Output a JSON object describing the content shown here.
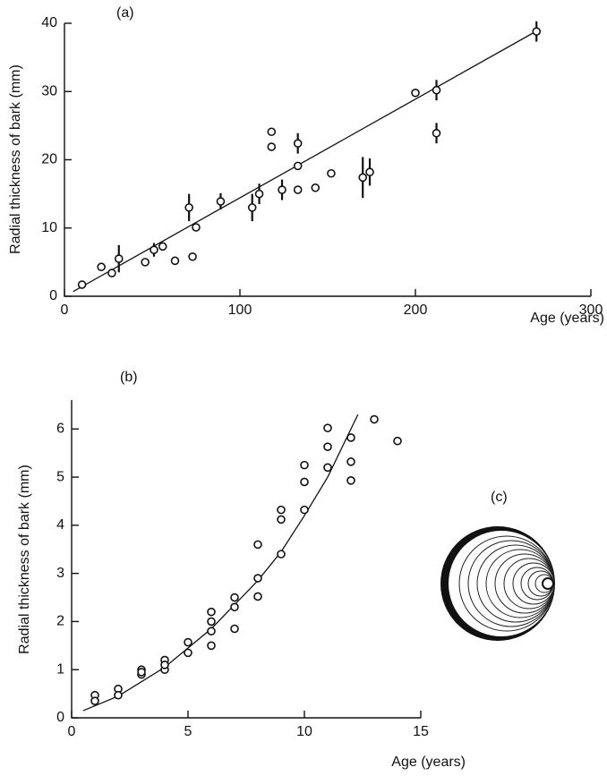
{
  "chart_data": [
    {
      "type": "scatter",
      "title": "(a)",
      "x_label": "Age (years)",
      "y_label": "Radial thickness of bark (mm)",
      "xlim": [
        0,
        300
      ],
      "ylim": [
        0,
        40
      ],
      "xticks": [
        0,
        100,
        200,
        300
      ],
      "yticks": [
        0,
        10,
        20,
        30,
        40
      ],
      "series": [
        {
          "color": "#111111",
          "x": [
            10,
            21,
            27,
            31,
            46,
            51,
            56,
            63,
            71,
            73,
            75,
            89,
            107,
            111,
            118,
            118,
            124,
            133,
            133,
            133,
            143,
            152,
            170,
            174,
            200,
            212,
            212,
            269
          ],
          "values": [
            1.7,
            4.3,
            3.4,
            5.5,
            5.0,
            6.8,
            7.3,
            5.2,
            13.0,
            5.8,
            10.1,
            13.9,
            13.0,
            15.0,
            24.1,
            21.9,
            15.6,
            22.4,
            19.1,
            15.6,
            15.9,
            18.0,
            17.4,
            18.2,
            29.8,
            30.2,
            23.9,
            38.8
          ],
          "errors": [
            null,
            null,
            null,
            2,
            null,
            1,
            null,
            null,
            2,
            null,
            null,
            1.2,
            2,
            1.5,
            null,
            null,
            1.5,
            1.5,
            null,
            null,
            null,
            null,
            3,
            2,
            null,
            1.5,
            1.5,
            1.5
          ]
        }
      ],
      "fit": {
        "x": [
          5,
          270
        ],
        "values": [
          0.7,
          39
        ]
      }
    },
    {
      "type": "scatter",
      "title": "(b)",
      "x_label": "Age (years)",
      "y_label": "Radial thickness of bark (mm)",
      "xlim": [
        0,
        15
      ],
      "ylim": [
        0,
        6.6
      ],
      "xticks": [
        0,
        5,
        10,
        15
      ],
      "yticks": [
        0,
        1,
        2,
        3,
        4,
        5,
        6
      ],
      "series": [
        {
          "color": "#111111",
          "x": [
            1,
            1,
            2,
            2,
            3,
            3,
            3,
            4,
            4,
            4,
            5,
            5,
            6,
            6,
            6,
            6,
            7,
            7,
            7,
            8,
            8,
            8,
            9,
            9,
            9,
            10,
            10,
            10,
            11,
            11,
            11,
            12,
            12,
            12,
            13,
            14
          ],
          "values": [
            0.47,
            0.35,
            0.6,
            0.47,
            1.0,
            0.9,
            0.95,
            1.2,
            1.0,
            1.1,
            1.57,
            1.35,
            2.2,
            2.0,
            1.8,
            1.5,
            2.5,
            2.3,
            1.85,
            3.6,
            2.9,
            2.52,
            4.32,
            4.12,
            3.4,
            5.25,
            4.9,
            4.32,
            6.02,
            5.63,
            5.2,
            5.82,
            5.32,
            4.93,
            6.2,
            5.75
          ]
        }
      ],
      "fit": {
        "x": [
          0.5,
          2,
          4,
          6,
          8,
          9,
          10,
          11,
          12.3
        ],
        "values": [
          0.15,
          0.45,
          1.05,
          1.85,
          2.85,
          3.45,
          4.2,
          5.0,
          6.3
        ]
      }
    }
  ],
  "diagram": {
    "label": "(c)"
  }
}
